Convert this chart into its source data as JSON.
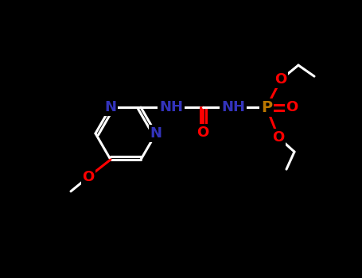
{
  "bg_color": "#000000",
  "fig_width": 4.55,
  "fig_height": 3.5,
  "dpi": 100,
  "colors": {
    "N": "#3333bb",
    "O": "#ff0000",
    "P": "#bb7700",
    "C": "#ffffff",
    "bond": "#ffffff"
  },
  "font_size_atom": 13,
  "font_size_small": 10
}
